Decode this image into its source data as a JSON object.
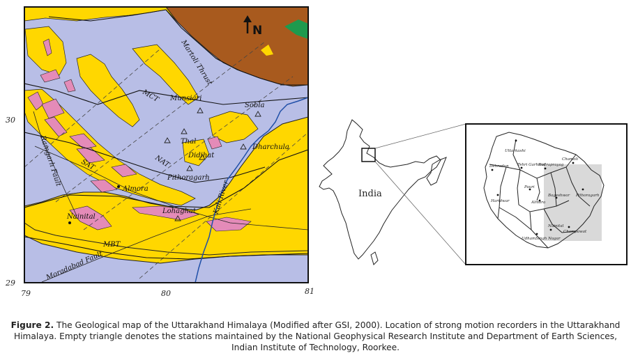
{
  "geo_map": {
    "labels": {
      "north": "N",
      "munsiari": "Munsiari",
      "sobla": "Sobla",
      "thal": "Thal",
      "dharchula": "Dharchula",
      "didihat": "Didihat",
      "pithoragarh": "Pithoragarh",
      "almora": "Almora",
      "lohaghat": "Lohaghat",
      "nainital": "Nainital",
      "kali_river": "Kali River",
      "moradabad_fault": "Moradabad Fault",
      "ramgarh_fault": "Ramgarh Fault",
      "mct": "MCT",
      "nat": "NAT",
      "sat": "SAT",
      "mbt": "MBT",
      "martoli_thrust": "Martoli Thrust"
    },
    "axis": {
      "lat_30": "30",
      "lat_29": "29",
      "lon_79": "79",
      "lon_80": "80",
      "lon_81": "81"
    },
    "colors": {
      "yellow": "#FFD700",
      "lavender": "#B8BEE6",
      "brown": "#A85A1E",
      "pink": "#E48BB8",
      "green": "#1E9A4E",
      "river": "#1F4FA8"
    }
  },
  "india_map": {
    "label": "India"
  },
  "district_map": {
    "districts": {
      "uttarkashi": "Uttarkashi",
      "chamoli": "Chamoli",
      "dehradun": "Dehradun",
      "tehri_garhwal": "Tehri Garhwal",
      "rudraprayag": "Rudraprayag",
      "pauri": "Pauri",
      "haridwar": "Haridwar",
      "almora": "Almora",
      "bageshwar": "Bageshwar",
      "pithoragarh": "Pithoragarh",
      "nainital": "Nainital",
      "champawat": "Champawat",
      "udhamsingh_nagar": "UdhamSingh Nagar"
    }
  },
  "caption": {
    "figure_label": "Figure 2.",
    "text": "The Geological map of the Uttarakhand Himalaya (Modified after GSI, 2000). Location of strong motion recorders in the Uttarakhand Himalaya. Empty triangle denotes the stations maintained by the National Geophysical Research Institute and Department of Earth Sciences, Indian Institute of Technology, Roorkee."
  }
}
